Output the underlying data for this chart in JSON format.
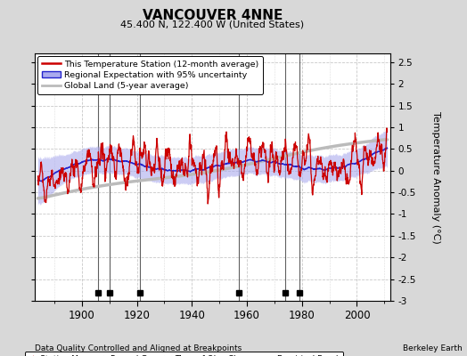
{
  "title": "VANCOUVER 4NNE",
  "subtitle": "45.400 N, 122.400 W (United States)",
  "ylabel": "Temperature Anomaly (°C)",
  "xlabel_bottom": "Data Quality Controlled and Aligned at Breakpoints",
  "credit": "Berkeley Earth",
  "year_start": 1884,
  "year_end": 2011,
  "ylim": [
    -3.0,
    2.7
  ],
  "yticks": [
    -3,
    -2.5,
    -2,
    -1.5,
    -1,
    -0.5,
    0,
    0.5,
    1,
    1.5,
    2,
    2.5
  ],
  "xticks": [
    1900,
    1920,
    1940,
    1960,
    1980,
    2000
  ],
  "vertical_lines": [
    1906,
    1910,
    1921,
    1957,
    1974,
    1979
  ],
  "empirical_breaks": [
    1906,
    1910,
    1921,
    1957,
    1974,
    1979
  ],
  "bg_color": "#d8d8d8",
  "plot_bg_color": "#ffffff",
  "grid_color": "#bbbbbb",
  "red_color": "#cc0000",
  "blue_color": "#2222cc",
  "blue_fill_color": "#aaaaee",
  "global_land_color": "#bbbbbb",
  "seed": 17
}
